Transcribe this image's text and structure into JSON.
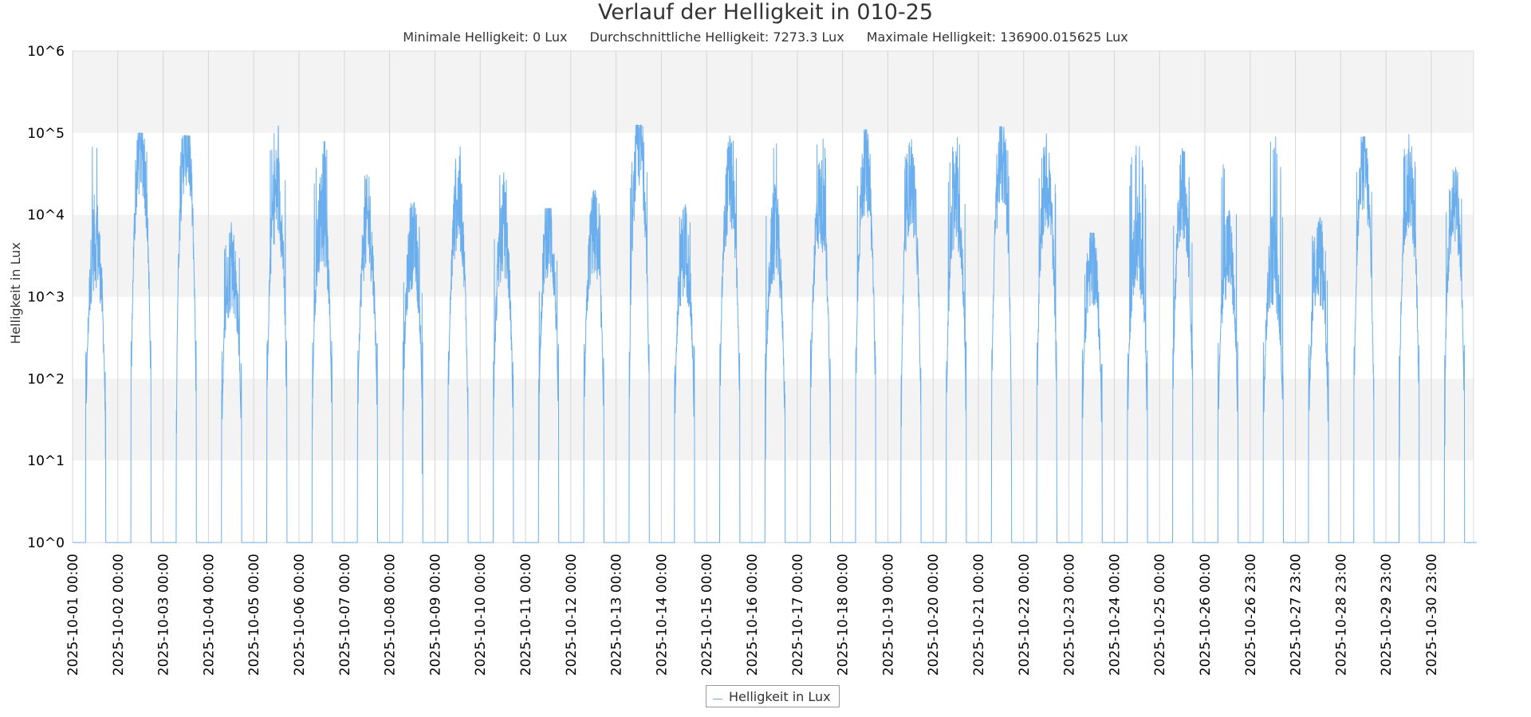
{
  "chart_data": {
    "type": "line",
    "title": "Verlauf der Helligkeit in 010-25",
    "stats": {
      "min": "Minimale Helligkeit: 0 Lux",
      "avg": "Durchschnittliche Helligkeit: 7273.3 Lux",
      "max": "Maximale Helligkeit: 136900.015625 Lux"
    },
    "ylabel": "Helligkeit in Lux",
    "yscale": "log",
    "ylim": [
      1,
      1000000
    ],
    "yticks": [
      "10^0",
      "10^1",
      "10^2",
      "10^3",
      "10^4",
      "10^5",
      "10^6"
    ],
    "x_tick_labels": [
      "2025-10-01 00:00",
      "2025-10-02 00:00",
      "2025-10-03 00:00",
      "2025-10-04 00:00",
      "2025-10-05 00:00",
      "2025-10-06 00:00",
      "2025-10-07 00:00",
      "2025-10-08 00:00",
      "2025-10-09 00:00",
      "2025-10-10 00:00",
      "2025-10-11 00:00",
      "2025-10-12 00:00",
      "2025-10-13 00:00",
      "2025-10-14 00:00",
      "2025-10-15 00:00",
      "2025-10-16 00:00",
      "2025-10-17 00:00",
      "2025-10-18 00:00",
      "2025-10-19 00:00",
      "2025-10-20 00:00",
      "2025-10-21 00:00",
      "2025-10-22 00:00",
      "2025-10-23 00:00",
      "2025-10-24 00:00",
      "2025-10-25 00:00",
      "2025-10-26 00:00",
      "2025-10-26 23:00",
      "2025-10-27 23:00",
      "2025-10-28 23:00",
      "2025-10-29 23:00",
      "2025-10-30 23:00"
    ],
    "series": [
      {
        "name": "Helligkeit in Lux",
        "color": "#6aaeee",
        "daily_min_lux": 0,
        "daily_peak_lux": [
          95000,
          100000,
          93000,
          10000,
          130000,
          90000,
          45000,
          14000,
          85000,
          48000,
          12000,
          20000,
          125000,
          14000,
          110000,
          95000,
          115000,
          110000,
          95000,
          100000,
          120000,
          100000,
          6000,
          85000,
          65000,
          60000,
          100000,
          10000,
          90000,
          105000,
          42000
        ],
        "daily_typical_lux": [
          5000,
          70000,
          85000,
          2500,
          20000,
          10000,
          8000,
          5000,
          15000,
          7000,
          7000,
          7000,
          80000,
          4000,
          25000,
          6000,
          15000,
          40000,
          25000,
          15000,
          50000,
          25000,
          3000,
          5000,
          20000,
          4000,
          3000,
          3000,
          40000,
          25000,
          18000
        ]
      }
    ],
    "legend": "bottom-center"
  }
}
